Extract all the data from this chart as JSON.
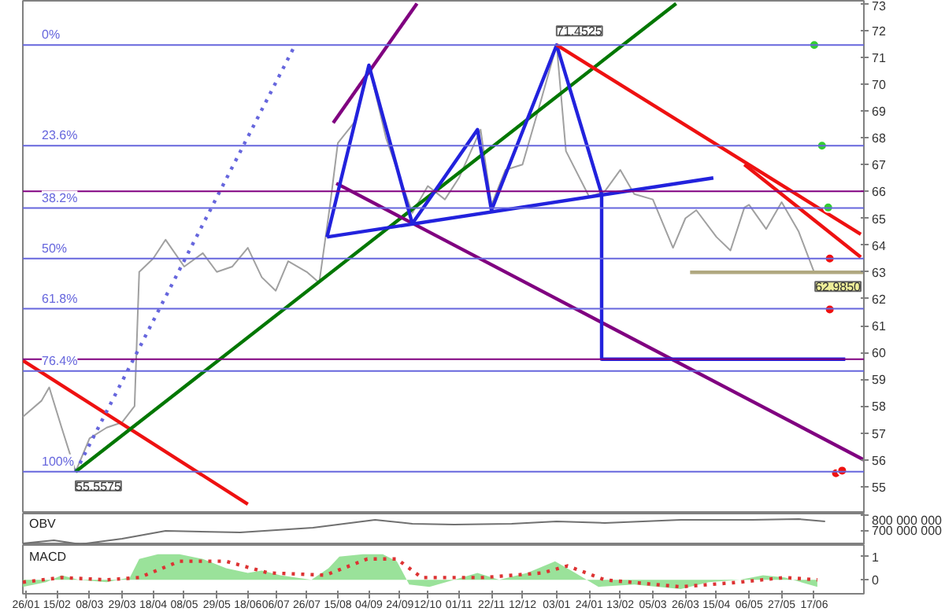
{
  "chart_data": [
    {
      "type": "line",
      "xlim": [
        "2007-01-24",
        "2008-07-19"
      ],
      "ylim": [
        54,
        73.1
      ],
      "yticks": [
        55,
        56,
        57,
        58,
        59,
        60,
        61,
        62,
        63,
        64,
        65,
        66,
        67,
        68,
        69,
        70,
        71,
        72,
        73
      ],
      "tick_labels": "y",
      "series": [
        {
          "color": "#a0a0a0",
          "x": [
            "2007-01-24",
            "2007-02-05",
            "2007-02-10",
            "2007-02-18",
            "2007-02-27",
            "2007-03-08",
            "2007-03-19",
            "2007-03-29",
            "2007-04-06",
            "2007-04-09",
            "2007-04-18",
            "2007-04-26",
            "2007-05-08",
            "2007-05-20",
            "2007-05-29",
            "2007-06-08",
            "2007-06-18",
            "2007-06-27",
            "2007-07-06",
            "2007-07-14",
            "2007-07-26",
            "2007-08-03",
            "2007-08-10",
            "2007-08-15",
            "2007-08-26",
            "2007-09-04",
            "2007-09-15",
            "2007-09-24",
            "2007-10-02",
            "2007-10-12",
            "2007-10-23",
            "2007-11-01",
            "2007-11-15",
            "2007-11-22",
            "2007-12-01",
            "2007-12-12",
            "2007-12-22",
            "2008-01-03",
            "2008-01-09",
            "2008-01-24",
            "2008-02-03",
            "2008-02-13",
            "2008-02-22",
            "2008-03-05",
            "2008-03-18",
            "2008-03-26",
            "2008-04-02",
            "2008-04-15",
            "2008-04-24",
            "2008-05-03",
            "2008-05-06",
            "2008-05-17",
            "2008-05-27",
            "2008-06-07",
            "2008-06-17"
          ],
          "values": [
            57.6,
            58.2,
            58.7,
            57.2,
            55.5575,
            56.8,
            57.2,
            57.4,
            58.0,
            63.0,
            63.5,
            64.2,
            63.2,
            63.7,
            63.0,
            63.2,
            63.9,
            62.8,
            62.3,
            63.4,
            63.0,
            62.6,
            65.5,
            67.8,
            68.6,
            70.7,
            68.0,
            66.5,
            65.2,
            66.2,
            65.7,
            66.5,
            68.3,
            65.5,
            66.8,
            67.0,
            69.0,
            71.4525,
            67.5,
            65.8,
            66.0,
            66.8,
            65.9,
            65.7,
            63.9,
            65.0,
            65.3,
            64.3,
            63.8,
            65.4,
            65.5,
            64.6,
            65.6,
            64.5,
            62.985
          ]
        },
        {
          "color": "#ee1111",
          "x": [
            "2007-01-24",
            "2007-06-18"
          ],
          "values": [
            59.7,
            54.35
          ]
        },
        {
          "color": "#6666dd",
          "line_style": "dotted",
          "x": [
            "2007-02-27",
            "2007-07-18"
          ],
          "values": [
            55.5575,
            71.4
          ]
        },
        {
          "color": "#007700",
          "x": [
            "2007-02-27",
            "2008-03-20"
          ],
          "values": [
            55.5575,
            73.0
          ]
        },
        {
          "color": "#800080",
          "x": [
            "2007-08-12",
            "2007-10-05"
          ],
          "values": [
            68.55,
            73.0
          ]
        },
        {
          "color": "#800080",
          "x": [
            "2007-08-14",
            "2008-07-19"
          ],
          "values": [
            66.3,
            56.0
          ]
        },
        {
          "color": "#2222dd",
          "x": [
            "2007-08-08",
            "2007-09-04",
            "2007-10-02",
            "2007-11-13",
            "2007-11-22",
            "2008-01-03",
            "2008-02-01",
            "2008-02-01",
            "2008-07-07"
          ],
          "values": [
            64.3,
            70.7,
            64.8,
            68.3,
            65.3,
            71.4525,
            65.9,
            59.75,
            59.75
          ]
        },
        {
          "color": "#2222dd",
          "x": [
            "2007-08-08",
            "2008-04-13"
          ],
          "values": [
            64.3,
            66.5
          ]
        },
        {
          "color": "#ee1111",
          "x": [
            "2008-01-03",
            "2008-07-17"
          ],
          "values": [
            71.4525,
            64.4
          ]
        },
        {
          "color": "#ee1111",
          "x": [
            "2008-05-03",
            "2008-07-17"
          ],
          "values": [
            67.0,
            63.55
          ]
        },
        {
          "color": "#b0a880",
          "x": [
            "2008-03-29",
            "2008-07-19"
          ],
          "values": [
            62.985,
            62.985
          ]
        },
        {
          "type": "scatter",
          "marker": "circle",
          "color": "#33cc33",
          "x": [
            "2008-06-17",
            "2008-06-22",
            "2008-06-26"
          ],
          "values": [
            71.45,
            67.7,
            65.4
          ]
        },
        {
          "type": "scatter",
          "marker": "circle",
          "color": "#ee1111",
          "x": [
            "2008-06-27",
            "2008-06-27",
            "2008-07-01",
            "2008-07-05"
          ],
          "values": [
            63.5,
            61.6,
            55.5,
            55.6
          ]
        }
      ],
      "ref_lines": [
        {
          "axis": "y",
          "value": 71.4525,
          "color": "#6666dd"
        },
        {
          "axis": "y",
          "value": 67.7,
          "color": "#6666dd"
        },
        {
          "axis": "y",
          "value": 65.38,
          "color": "#6666dd"
        },
        {
          "axis": "y",
          "value": 63.5,
          "color": "#6666dd"
        },
        {
          "axis": "y",
          "value": 61.63,
          "color": "#6666dd"
        },
        {
          "axis": "y",
          "value": 59.31,
          "color": "#6666dd"
        },
        {
          "axis": "y",
          "value": 55.5575,
          "color": "#6666dd"
        },
        {
          "axis": "y",
          "value": 66.0,
          "color": "#800080"
        },
        {
          "axis": "y",
          "value": 59.75,
          "color": "#800080"
        }
      ],
      "annotations": [
        {
          "text": "0%",
          "x": "2007-01-24",
          "y": 71.4525
        },
        {
          "text": "23.6%",
          "x": "2007-01-24",
          "y": 67.7
        },
        {
          "text": "38.2%",
          "x": "2007-01-24",
          "y": 65.38
        },
        {
          "text": "50%",
          "x": "2007-01-24",
          "y": 63.5
        },
        {
          "text": "61.8%",
          "x": "2007-01-24",
          "y": 61.63
        },
        {
          "text": "76.4%",
          "x": "2007-01-24",
          "y": 59.31
        },
        {
          "text": "100%",
          "x": "2007-01-24",
          "y": 55.5575
        },
        {
          "text": "71.4525",
          "x": "2008-01-03",
          "y": 71.4525
        },
        {
          "text": "55.5575",
          "x": "2007-02-27",
          "y": 55.5575
        },
        {
          "text": "62.9850",
          "x": "2008-07-19",
          "y": 62.985
        }
      ]
    },
    {
      "type": "line",
      "title": "OBV",
      "xlim": [
        "2007-01-24",
        "2008-07-19"
      ],
      "ylim": [
        610000000,
        810000000
      ],
      "yticks": [
        {
          "value": 700000000,
          "label": "700 000 000"
        },
        {
          "value": 800000000,
          "label": "800 000 000"
        }
      ],
      "tick_labels": "y",
      "series": [
        {
          "color": "#707070",
          "x": [
            "2007-01-24",
            "2007-02-13",
            "2007-03-02",
            "2007-03-29",
            "2007-04-26",
            "2007-06-13",
            "2007-07-30",
            "2007-09-08",
            "2007-10-02",
            "2007-10-29",
            "2007-12-05",
            "2008-01-03",
            "2008-02-03",
            "2008-03-23",
            "2008-05-08",
            "2008-06-07",
            "2008-06-24"
          ],
          "values": [
            620000000,
            640000000,
            615000000,
            650000000,
            700000000,
            690000000,
            720000000,
            770000000,
            745000000,
            740000000,
            745000000,
            760000000,
            750000000,
            770000000,
            770000000,
            775000000,
            760000000
          ]
        }
      ]
    },
    {
      "type": "area",
      "title": "MACD",
      "xlim": [
        "2007-01-24",
        "2008-07-19"
      ],
      "ylim": [
        -0.6,
        1.5
      ],
      "yticks": [
        0,
        1
      ],
      "xticks": [
        {
          "value": "2007-01-26",
          "label": "26/01"
        },
        {
          "value": "2007-02-15",
          "label": "15/02"
        },
        {
          "value": "2007-03-08",
          "label": "08/03"
        },
        {
          "value": "2007-03-29",
          "label": "29/03"
        },
        {
          "value": "2007-04-18",
          "label": "18/04"
        },
        {
          "value": "2007-05-08",
          "label": "08/05"
        },
        {
          "value": "2007-05-29",
          "label": "29/05"
        },
        {
          "value": "2007-06-18",
          "label": "18/06"
        },
        {
          "value": "2007-07-06",
          "label": "06/07"
        },
        {
          "value": "2007-07-26",
          "label": "26/07"
        },
        {
          "value": "2007-08-15",
          "label": "15/08"
        },
        {
          "value": "2007-09-04",
          "label": "04/09"
        },
        {
          "value": "2007-09-24",
          "label": "24/09"
        },
        {
          "value": "2007-10-12",
          "label": "12/10"
        },
        {
          "value": "2007-11-01",
          "label": "01/11"
        },
        {
          "value": "2007-11-22",
          "label": "22/11"
        },
        {
          "value": "2007-12-12",
          "label": "12/12"
        },
        {
          "value": "2008-01-03",
          "label": "03/01"
        },
        {
          "value": "2008-01-24",
          "label": "24/01"
        },
        {
          "value": "2008-02-13",
          "label": "13/02"
        },
        {
          "value": "2008-03-05",
          "label": "05/03"
        },
        {
          "value": "2008-03-26",
          "label": "26/03"
        },
        {
          "value": "2008-04-15",
          "label": "15/04"
        },
        {
          "value": "2008-05-06",
          "label": "06/05"
        },
        {
          "value": "2008-05-27",
          "label": "27/05"
        },
        {
          "value": "2008-06-17",
          "label": "17/06"
        }
      ],
      "series": [
        {
          "color": "#88dd88",
          "x": [
            "2007-01-24",
            "2007-02-08",
            "2007-02-18",
            "2007-03-01",
            "2007-03-19",
            "2007-04-03",
            "2007-04-09",
            "2007-04-21",
            "2007-05-05",
            "2007-05-20",
            "2007-06-04",
            "2007-06-18",
            "2007-06-27",
            "2007-07-09",
            "2007-07-29",
            "2007-08-09",
            "2007-08-16",
            "2007-08-31",
            "2007-09-13",
            "2007-09-22",
            "2007-09-30",
            "2007-10-13",
            "2007-10-29",
            "2007-11-13",
            "2007-11-27",
            "2007-12-15",
            "2008-01-02",
            "2008-01-15",
            "2008-01-30",
            "2008-02-22",
            "2008-03-23",
            "2008-04-10",
            "2008-04-30",
            "2008-05-15",
            "2008-05-29",
            "2008-06-19"
          ],
          "values": [
            -0.3,
            -0.1,
            0.2,
            0.0,
            -0.1,
            0.1,
            0.9,
            1.1,
            1.1,
            0.9,
            0.5,
            0.3,
            0.4,
            0.2,
            0.0,
            0.5,
            1.0,
            1.1,
            1.1,
            0.8,
            -0.2,
            -0.3,
            0.0,
            0.3,
            0.0,
            0.3,
            0.8,
            0.3,
            -0.3,
            -0.2,
            -0.4,
            -0.1,
            0.0,
            0.2,
            0.1,
            -0.3
          ]
        },
        {
          "type": "line",
          "line_style": "dotted",
          "color": "#dd3333",
          "x": [
            "2007-01-24",
            "2007-02-18",
            "2007-03-19",
            "2007-04-09",
            "2007-05-05",
            "2007-06-04",
            "2007-07-01",
            "2007-08-07",
            "2007-09-03",
            "2007-09-22",
            "2007-10-08",
            "2007-11-17",
            "2007-12-25",
            "2008-01-10",
            "2008-02-03",
            "2008-03-23",
            "2008-04-30",
            "2008-05-29",
            "2008-06-19"
          ],
          "values": [
            -0.1,
            0.1,
            0.0,
            0.1,
            0.8,
            0.8,
            0.3,
            0.2,
            0.9,
            0.9,
            0.1,
            0.1,
            0.3,
            0.6,
            0.0,
            -0.3,
            -0.1,
            0.1,
            0.0
          ]
        }
      ]
    }
  ]
}
